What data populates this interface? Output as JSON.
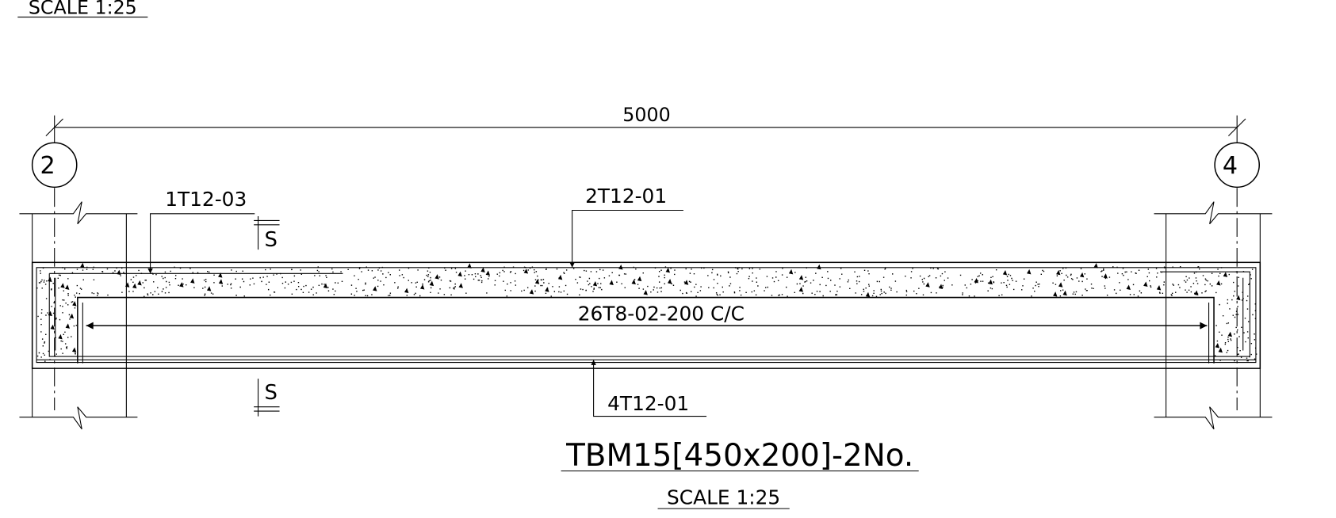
{
  "header": {
    "scale": "SCALE 1:25"
  },
  "dimension": {
    "label": "5000"
  },
  "grid_lines": [
    {
      "label": "2"
    },
    {
      "label": "4"
    }
  ],
  "section_marks": [
    {
      "label": "S"
    },
    {
      "label": "S"
    }
  ],
  "callouts": {
    "top_left": "1T12-03",
    "top_mid": "2T12-01",
    "links": "26T8-02-200 C/C",
    "bottom": "4T12-01"
  },
  "footer": {
    "title": "TBM15[450x200]-2No.",
    "scale": "SCALE 1:25"
  }
}
